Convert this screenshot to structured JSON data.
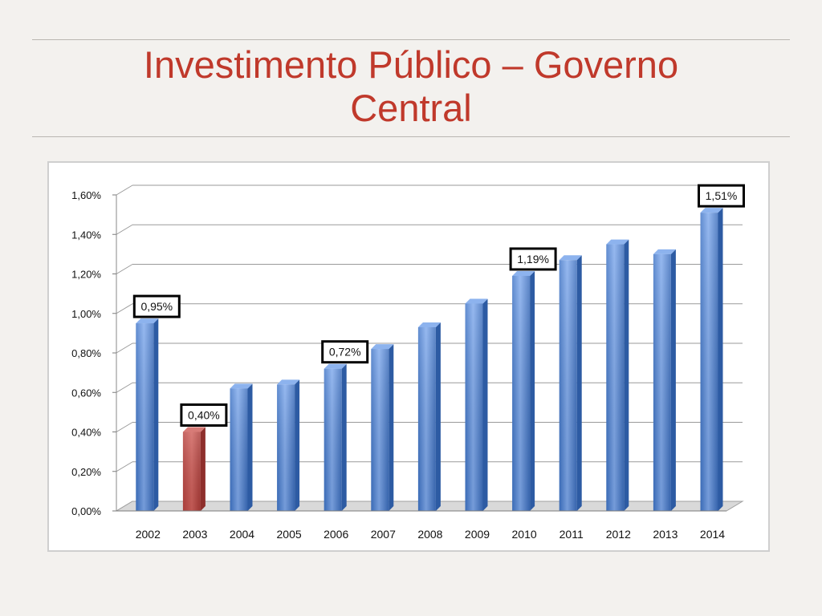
{
  "slide": {
    "title_line1": "Investimento Público – Governo",
    "title_line2": "Central"
  },
  "colors": {
    "title": "#c0392b",
    "bar": "#4f86d9",
    "highlight_bar": "#c0504d",
    "background": "#f3f1ee"
  },
  "chart_data": {
    "type": "bar",
    "title": "",
    "xlabel": "",
    "ylabel": "",
    "categories": [
      "2002",
      "2003",
      "2004",
      "2005",
      "2006",
      "2007",
      "2008",
      "2009",
      "2010",
      "2011",
      "2012",
      "2013",
      "2014"
    ],
    "values": [
      0.95,
      0.4,
      0.62,
      0.64,
      0.72,
      0.82,
      0.93,
      1.05,
      1.19,
      1.27,
      1.35,
      1.3,
      1.51
    ],
    "highlight_index": 1,
    "ylim": [
      0,
      1.6
    ],
    "yticks": [
      "0,00%",
      "0,20%",
      "0,40%",
      "0,60%",
      "0,80%",
      "1,00%",
      "1,20%",
      "1,40%",
      "1,60%"
    ],
    "grid": true,
    "legend": "none",
    "annotations": [
      {
        "index": 0,
        "label": "0,95%"
      },
      {
        "index": 1,
        "label": "0,40%"
      },
      {
        "index": 4,
        "label": "0,72%"
      },
      {
        "index": 8,
        "label": "1,19%"
      },
      {
        "index": 12,
        "label": "1,51%"
      }
    ]
  }
}
